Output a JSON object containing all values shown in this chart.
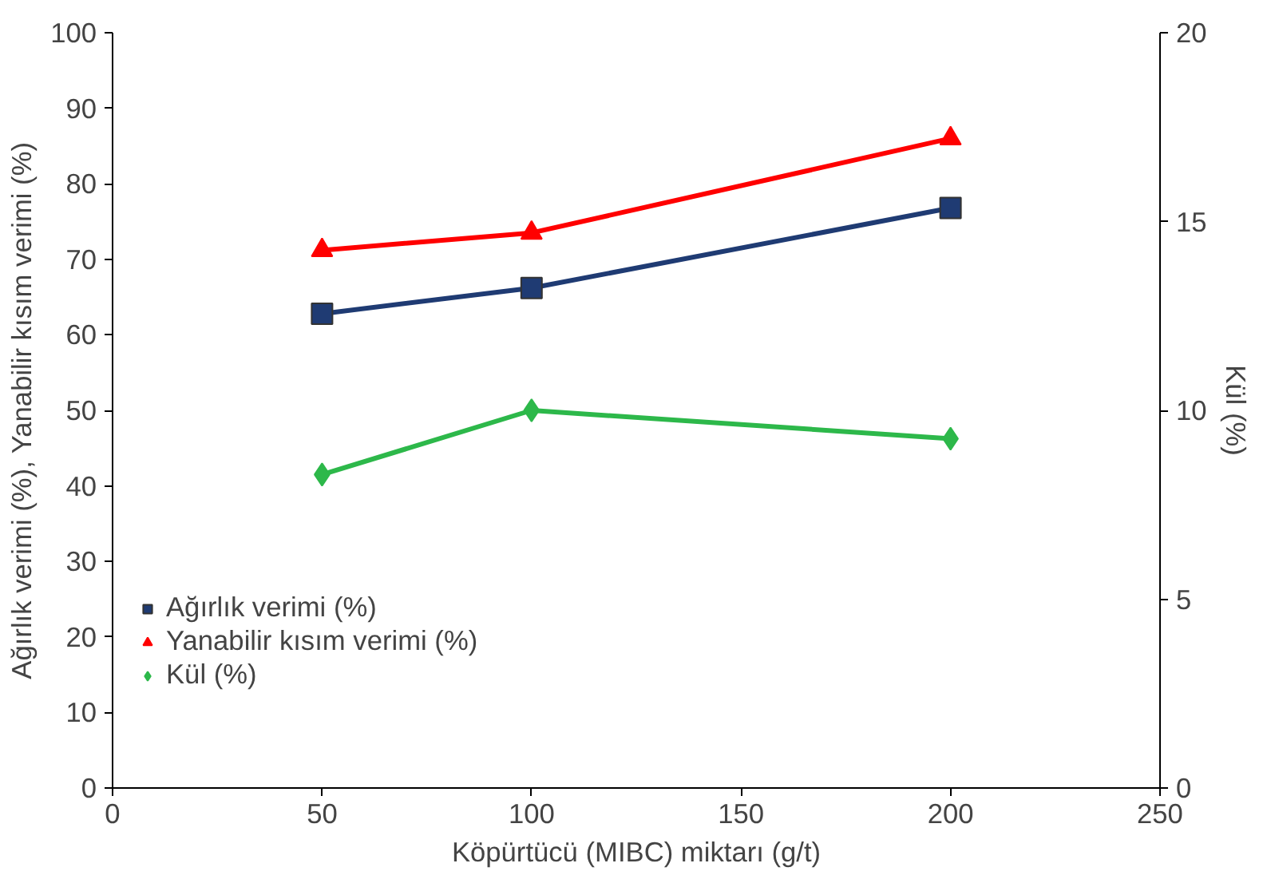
{
  "chart_data": {
    "type": "line",
    "xlabel": "Köpürtücü (MIBC) miktarı (g/t)",
    "ylabel": "Ağırlık verimi (%), Yanabilir kısım verimi (%)",
    "y2label": "Kül (%)",
    "x": [
      50,
      100,
      200
    ],
    "series": [
      {
        "name": "Ağırlık verimi (%)",
        "color": "#1f3b73",
        "values": [
          62.8,
          66.2,
          76.8
        ],
        "marker": "square"
      },
      {
        "name": "Yanabilir kısım verimi (%)",
        "color": "#ff0000",
        "values": [
          71.2,
          73.5,
          86.0
        ],
        "marker": "triangle"
      },
      {
        "name": "Kül (%)",
        "color": "#2db84a",
        "values": [
          8.3,
          10.0,
          9.25
        ],
        "marker": "diamond",
        "axis": "y2"
      }
    ],
    "xlim": [
      0,
      250
    ],
    "xticks": [
      0,
      50,
      100,
      150,
      200,
      250
    ],
    "ylim": [
      0,
      100
    ],
    "yticks": [
      0,
      10,
      20,
      30,
      40,
      50,
      60,
      70,
      80,
      90,
      100
    ],
    "y2lim": [
      0,
      20
    ],
    "y2ticks": [
      0,
      5,
      10,
      15,
      20
    ],
    "grid": false,
    "legend": "left",
    "line_style": "solid"
  }
}
